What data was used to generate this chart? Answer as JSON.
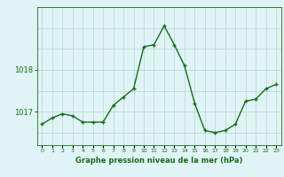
{
  "hours": [
    0,
    1,
    2,
    3,
    4,
    5,
    6,
    7,
    8,
    9,
    10,
    11,
    12,
    13,
    14,
    15,
    16,
    17,
    18,
    19,
    20,
    21,
    22,
    23
  ],
  "pressure": [
    1016.7,
    1016.85,
    1016.95,
    1016.9,
    1016.75,
    1016.75,
    1016.75,
    1017.15,
    1017.35,
    1017.55,
    1018.55,
    1018.6,
    1019.05,
    1018.6,
    1018.1,
    1017.2,
    1016.55,
    1016.5,
    1016.55,
    1016.7,
    1017.25,
    1017.3,
    1017.55,
    1017.65
  ],
  "line_color": "#1a6b1a",
  "marker_color": "#1a6b1a",
  "bg_color": "#dff4f4",
  "grid_color_h": "#b8d4d4",
  "grid_color_v": "#b8d4d4",
  "xlabel": "Graphe pression niveau de la mer (hPa)",
  "xlabel_color": "#1a6b1a",
  "tick_color": "#1a6b1a",
  "yticks": [
    1017,
    1018
  ],
  "ylim": [
    1016.2,
    1019.5
  ],
  "xlim": [
    -0.5,
    23.5
  ]
}
